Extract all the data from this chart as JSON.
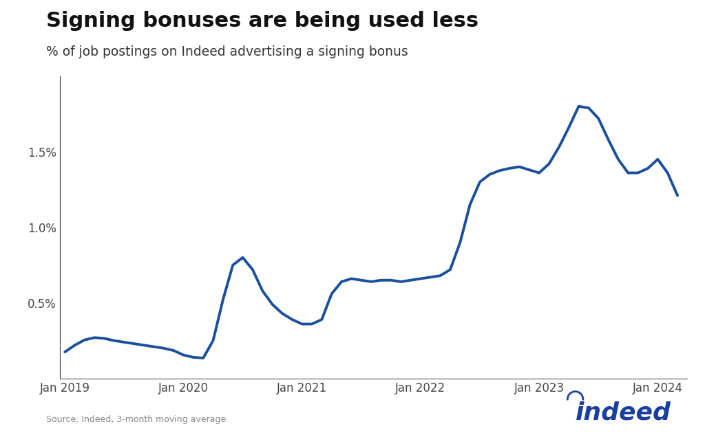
{
  "title": "Signing bonuses are being used less",
  "subtitle": "% of job postings on Indeed advertising a signing bonus",
  "source": "Source: Indeed, 3-month moving average",
  "line_color": "#1a4f9c",
  "background_color": "#ffffff",
  "ylim": [
    0.0,
    0.02
  ],
  "yticks": [
    0.005,
    0.01,
    0.015
  ],
  "ytick_labels": [
    "0.5%",
    "1.0%",
    "1.5%"
  ],
  "xtick_labels": [
    "Jan 2019",
    "Jan 2020",
    "Jan 2021",
    "Jan 2022",
    "Jan 2023",
    "Jan 2024"
  ],
  "data": {
    "months": [
      0,
      1,
      2,
      3,
      4,
      5,
      6,
      7,
      8,
      9,
      10,
      11,
      12,
      13,
      14,
      15,
      16,
      17,
      18,
      19,
      20,
      21,
      22,
      23,
      24,
      25,
      26,
      27,
      28,
      29,
      30,
      31,
      32,
      33,
      34,
      35,
      36,
      37,
      38,
      39,
      40,
      41,
      42,
      43,
      44,
      45,
      46,
      47,
      48,
      49,
      50,
      51,
      52,
      53,
      54,
      55,
      56,
      57,
      58,
      59,
      60,
      61,
      62
    ],
    "values": [
      0.00175,
      0.0022,
      0.00255,
      0.0027,
      0.00265,
      0.0025,
      0.0024,
      0.0023,
      0.0022,
      0.0021,
      0.002,
      0.00185,
      0.00155,
      0.0014,
      0.00135,
      0.0025,
      0.0052,
      0.0075,
      0.008,
      0.0072,
      0.0058,
      0.0049,
      0.0043,
      0.0039,
      0.0036,
      0.0036,
      0.0039,
      0.0056,
      0.0064,
      0.0066,
      0.0065,
      0.0064,
      0.0065,
      0.0065,
      0.0064,
      0.0065,
      0.0066,
      0.0067,
      0.0068,
      0.0072,
      0.009,
      0.0115,
      0.013,
      0.0135,
      0.01375,
      0.0139,
      0.014,
      0.0138,
      0.0136,
      0.0142,
      0.0153,
      0.0166,
      0.018,
      0.0179,
      0.0172,
      0.0158,
      0.0145,
      0.0136,
      0.0136,
      0.0139,
      0.0145,
      0.0136,
      0.0121
    ]
  }
}
